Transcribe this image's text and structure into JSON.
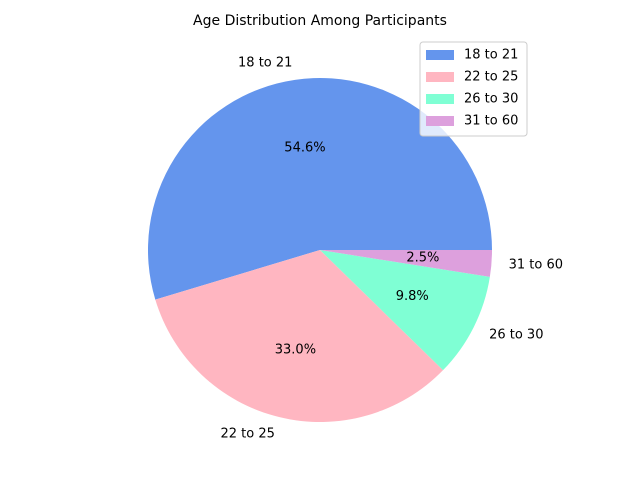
{
  "chart_data": {
    "type": "pie",
    "title": "Age Distribution Among Participants",
    "categories": [
      "18 to 21",
      "22 to 25",
      "26 to 30",
      "31 to 60"
    ],
    "values": [
      54.6,
      33.0,
      9.8,
      2.5
    ],
    "colors": [
      "#6495ed",
      "#ffb6c1",
      "#7fffd4",
      "#dda0dd"
    ],
    "legend_position": "top-right",
    "autopct_format": "one-decimal-percent",
    "start_angle_deg": 0,
    "direction": "counterclockwise"
  }
}
